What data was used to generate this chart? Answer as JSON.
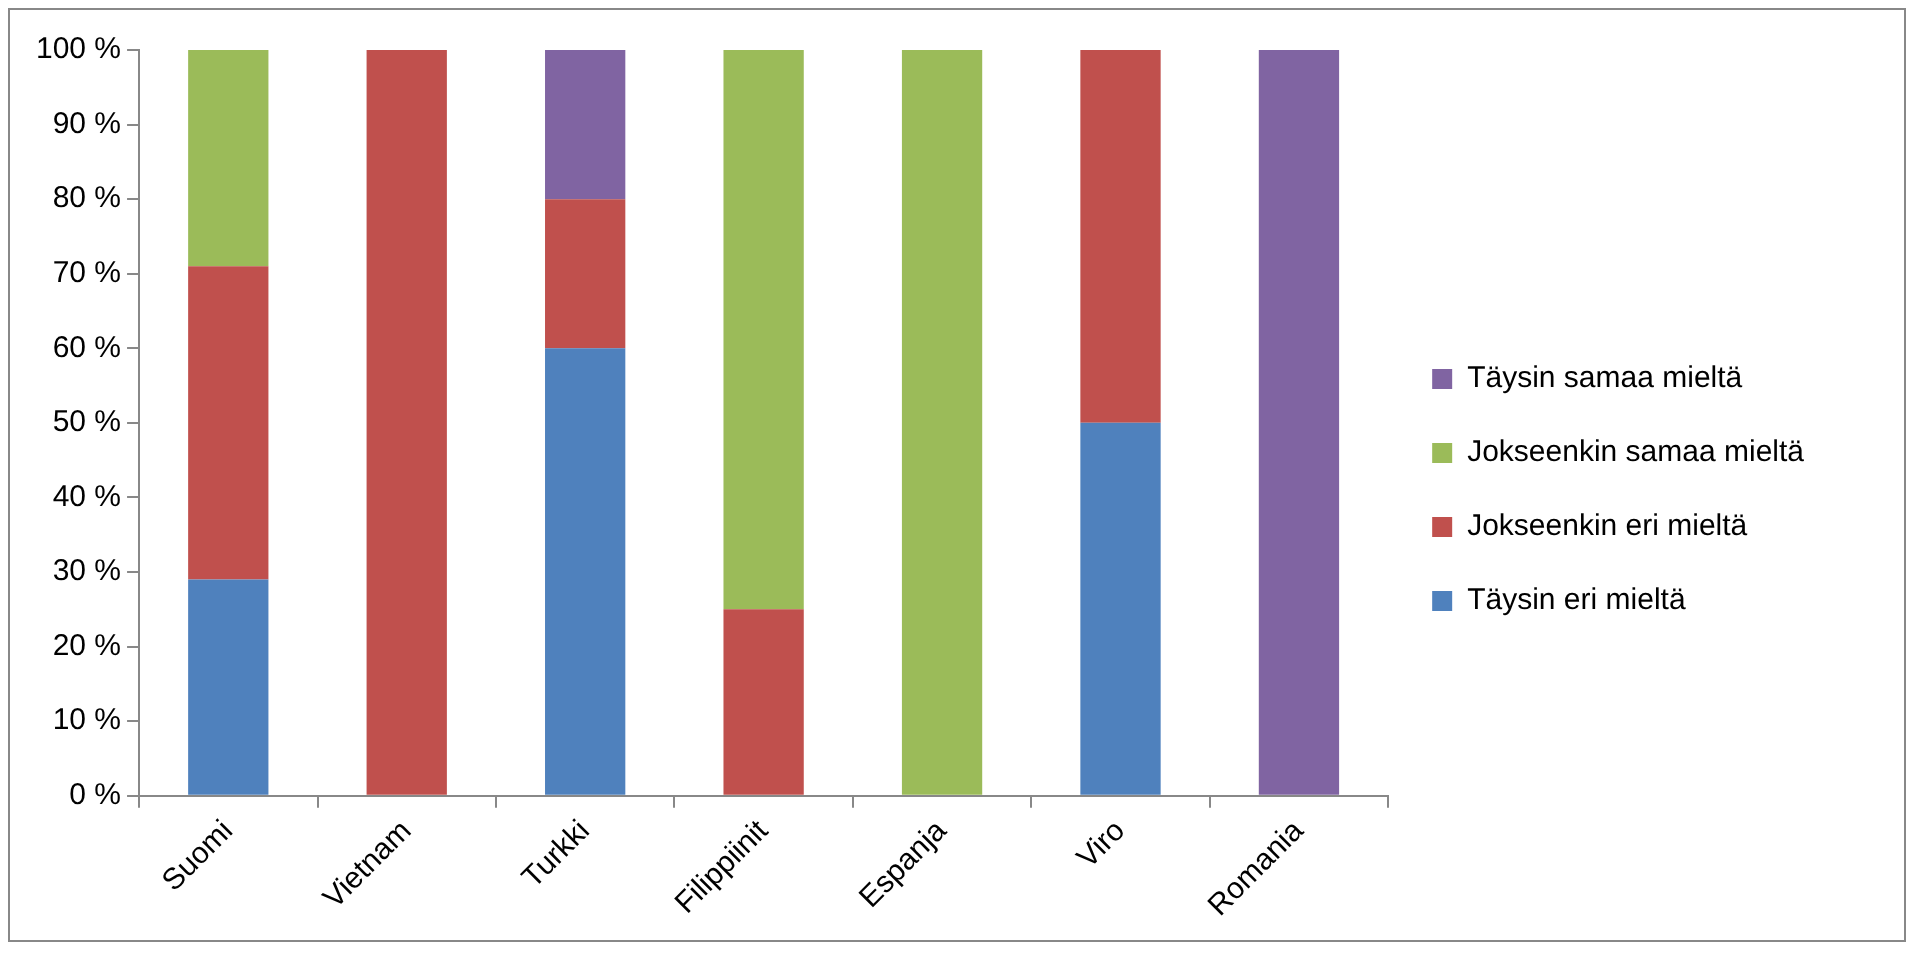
{
  "chart_data": {
    "type": "bar",
    "stacked": true,
    "categories": [
      "Suomi",
      "Vietnam",
      "Turkki",
      "Filippiinit",
      "Espanja",
      "Viro",
      "Romania"
    ],
    "series": [
      {
        "name": "Täysin eri mieltä",
        "color": "#4f81bd",
        "values": [
          29,
          0,
          60,
          0,
          0,
          50,
          0
        ]
      },
      {
        "name": "Jokseenkin eri mieltä",
        "color": "#c0504d",
        "values": [
          42,
          100,
          20,
          25,
          0,
          50,
          0
        ]
      },
      {
        "name": "Jokseenkin samaa mieltä",
        "color": "#9bbb59",
        "values": [
          29,
          0,
          0,
          75,
          100,
          0,
          0
        ]
      },
      {
        "name": "Täysin samaa mieltä",
        "color": "#8064a2",
        "values": [
          0,
          0,
          20,
          0,
          0,
          0,
          100
        ]
      }
    ],
    "ylim": [
      0,
      100
    ],
    "yticks": [
      {
        "value": 0,
        "label": "0 %"
      },
      {
        "value": 10,
        "label": "10 %"
      },
      {
        "value": 20,
        "label": "20 %"
      },
      {
        "value": 30,
        "label": "30 %"
      },
      {
        "value": 40,
        "label": "40 %"
      },
      {
        "value": 50,
        "label": "50 %"
      },
      {
        "value": 60,
        "label": "60 %"
      },
      {
        "value": 70,
        "label": "70 %"
      },
      {
        "value": 80,
        "label": "80 %"
      },
      {
        "value": 90,
        "label": "90 %"
      },
      {
        "value": 100,
        "label": "100 %"
      }
    ],
    "grid": false,
    "legend": "right"
  }
}
